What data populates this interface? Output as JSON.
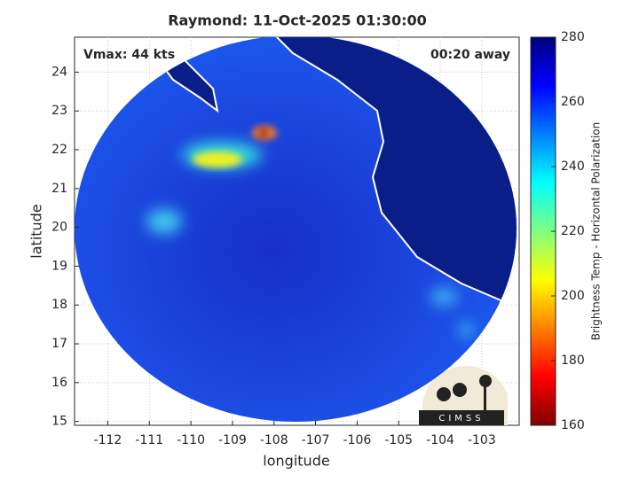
{
  "chart_data": {
    "type": "map",
    "title": "Raymond: 11-Oct-2025 01:30:00",
    "annotations": [
      "Vmax: 44 kts",
      "00:20 away"
    ],
    "x_label": "longitude",
    "y_label": "latitude",
    "xlim": [
      -112.8,
      -102.1
    ],
    "xticks": [
      -112,
      -111,
      -110,
      -109,
      -108,
      -107,
      -106,
      -105,
      -104,
      -103
    ],
    "ylim": [
      14.9,
      24.9
    ],
    "yticks": [
      15,
      16,
      17,
      18,
      19,
      20,
      21,
      22,
      23,
      24
    ],
    "grid": true,
    "colorbar": {
      "label": "Brightness Temp - Horizontal Polarization",
      "lim": [
        160,
        280
      ],
      "ticks": [
        160,
        180,
        200,
        220,
        240,
        260,
        280
      ]
    },
    "logo": "CIMSS"
  }
}
